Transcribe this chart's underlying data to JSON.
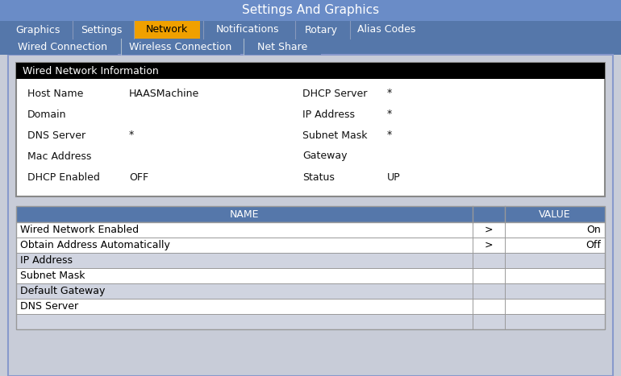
{
  "title": "Settings And Graphics",
  "title_bg": "#6a8cc7",
  "title_fg": "#ffffff",
  "tabs_main": [
    "Graphics",
    "Settings",
    "Network",
    "Notifications",
    "Rotary",
    "Alias Codes"
  ],
  "tabs_main_active": 2,
  "tabs_main_bg": "#5577aa",
  "tabs_main_fg": "#ffffff",
  "tabs_main_active_bg": "#f0a000",
  "tabs_main_active_fg": "#000000",
  "tabs_sub": [
    "Wired Connection",
    "Wireless Connection",
    "Net Share"
  ],
  "tabs_sub_bg": "#5577aa",
  "tabs_sub_fg": "#ffffff",
  "page_bg": "#c8ccd8",
  "info_box_border": "#888888",
  "info_box_header_bg": "#000000",
  "info_box_header_fg": "#ffffff",
  "info_box_body_bg": "#ffffff",
  "info_fields_left": [
    "Host Name",
    "Domain",
    "DNS Server",
    "Mac Address",
    "DHCP Enabled"
  ],
  "info_values_left": [
    "HAASMachine",
    "",
    "*",
    "",
    "OFF"
  ],
  "info_fields_right": [
    "DHCP Server",
    "IP Address",
    "Subnet Mask",
    "Gateway",
    "Status"
  ],
  "info_values_right": [
    "*",
    "*",
    "*",
    "",
    "UP"
  ],
  "table_header_bg": "#5577aa",
  "table_header_fg": "#ffffff",
  "table_rows": [
    {
      "name": "Wired Network Enabled",
      "arrow": ">",
      "value": "On",
      "bg": "#ffffff"
    },
    {
      "name": "Obtain Address Automatically",
      "arrow": ">",
      "value": "Off",
      "bg": "#ffffff"
    },
    {
      "name": "IP Address",
      "arrow": "",
      "value": "",
      "bg": "#d0d4e0"
    },
    {
      "name": "Subnet Mask",
      "arrow": "",
      "value": "",
      "bg": "#ffffff"
    },
    {
      "name": "Default Gateway",
      "arrow": "",
      "value": "",
      "bg": "#d0d4e0"
    },
    {
      "name": "DNS Server",
      "arrow": "",
      "value": "",
      "bg": "#ffffff"
    },
    {
      "name": "",
      "arrow": "",
      "value": "",
      "bg": "#d0d4e0"
    }
  ],
  "table_border": "#999999",
  "outer_border": "#8899cc"
}
